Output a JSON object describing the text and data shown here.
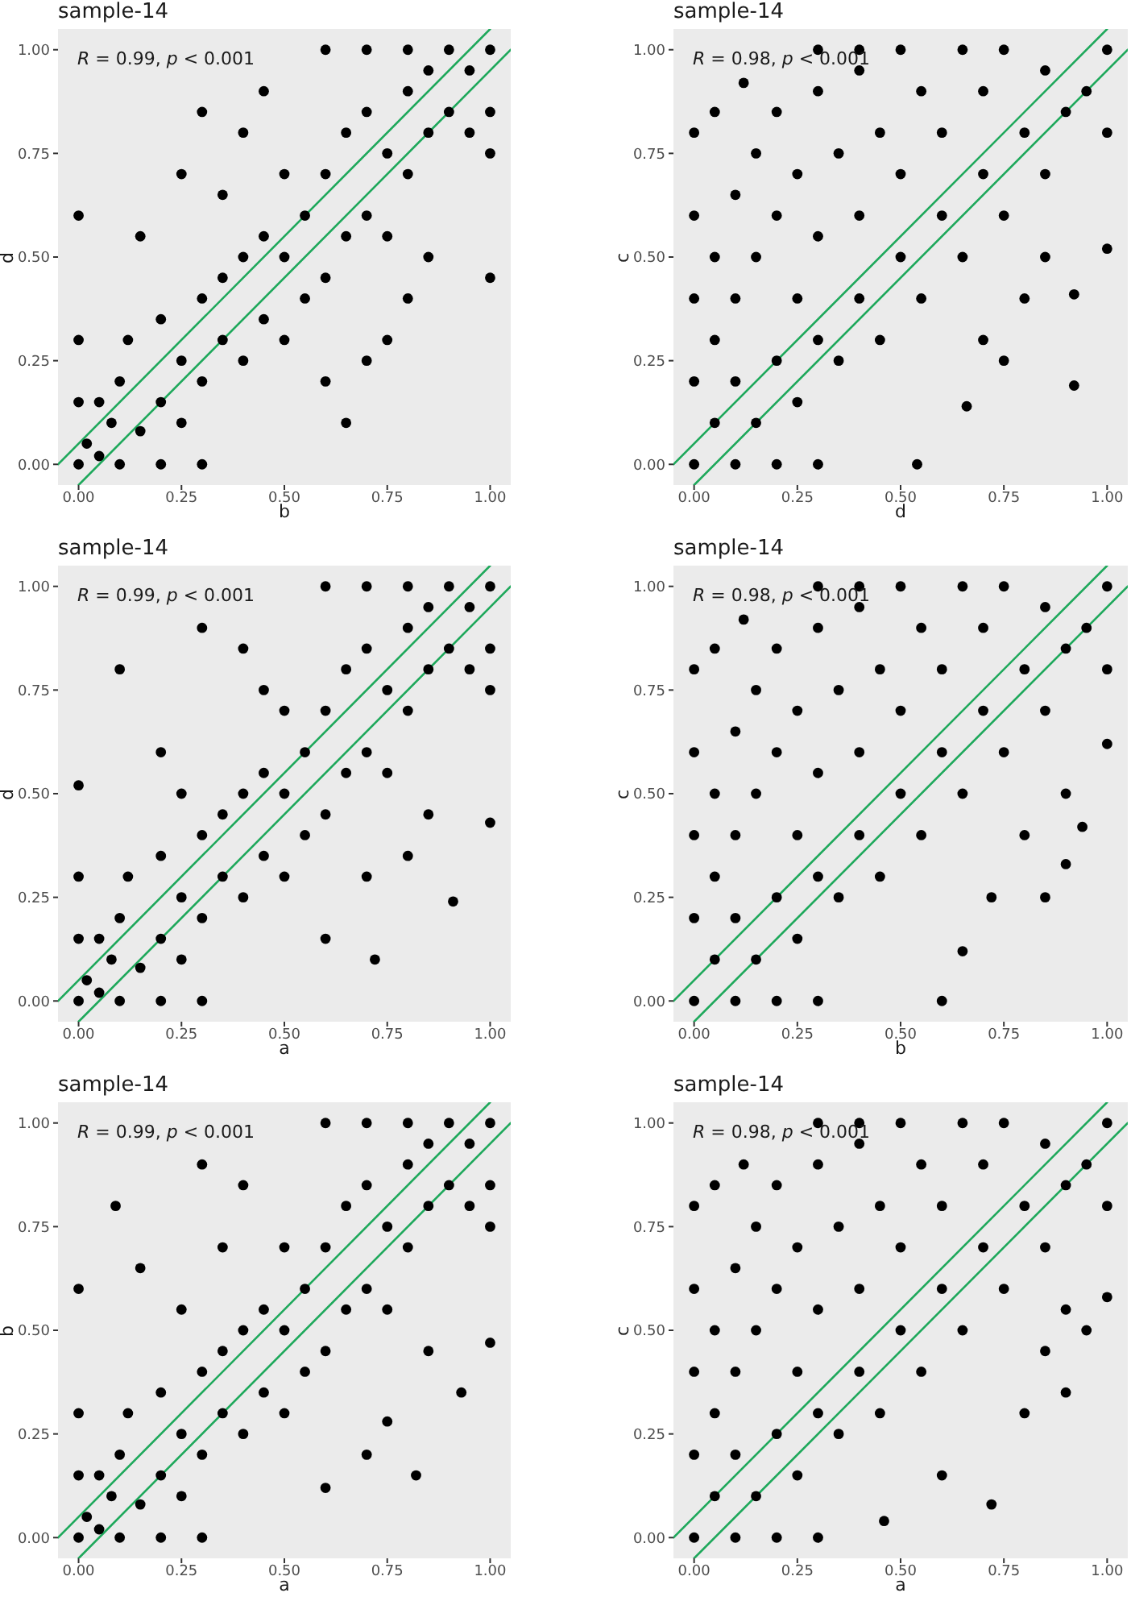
{
  "chart_data": [
    {
      "type": "scatter",
      "title": "sample-14",
      "xlabel": "b",
      "ylabel": "d",
      "annotations": [
        "R = 0.99, p < 0.001"
      ],
      "xlim": [
        -0.05,
        1.05
      ],
      "ylim": [
        -0.05,
        1.05
      ],
      "xticks": [
        {
          "value": 0,
          "label": "0.00"
        },
        {
          "value": 0.25,
          "label": "0.25"
        },
        {
          "value": 0.5,
          "label": "0.50"
        },
        {
          "value": 0.75,
          "label": "0.75"
        },
        {
          "value": 1,
          "label": "1.00"
        }
      ],
      "yticks": [
        {
          "value": 0,
          "label": "0.00"
        },
        {
          "value": 0.25,
          "label": "0.25"
        },
        {
          "value": 0.5,
          "label": "0.50"
        },
        {
          "value": 0.75,
          "label": "0.75"
        },
        {
          "value": 1,
          "label": "1.00"
        }
      ],
      "series": [
        {
          "color": "#000000",
          "marker": "circle",
          "x": [
            0,
            0.02,
            0,
            0,
            0.05,
            0.1,
            0.2,
            0.3,
            0.05,
            0.1,
            0.08,
            0.15,
            0.12,
            0.2,
            0.2,
            0.25,
            0.25,
            0.3,
            0.3,
            0.35,
            0.35,
            0.4,
            0.4,
            0.45,
            0.45,
            0.5,
            0.5,
            0.5,
            0.55,
            0.55,
            0.6,
            0.6,
            0.65,
            0.65,
            0.7,
            0.7,
            0.75,
            0.75,
            0.8,
            0.8,
            0.85,
            0.85,
            0.9,
            0.9,
            0.95,
            0.95,
            1,
            1,
            1,
            0.7,
            0.6,
            0.8,
            0.25,
            0.3,
            0.4,
            0.45,
            0.15,
            0.35,
            0.6,
            0.7,
            0.8,
            0.85,
            0.65,
            0.75,
            0,
            1
          ],
          "values": [
            0,
            0.05,
            0.15,
            0.3,
            0.02,
            0,
            0,
            0,
            0.15,
            0.2,
            0.1,
            0.08,
            0.3,
            0.35,
            0.15,
            0.1,
            0.25,
            0.4,
            0.2,
            0.45,
            0.3,
            0.5,
            0.25,
            0.35,
            0.55,
            0.5,
            0.3,
            0.7,
            0.6,
            0.4,
            0.45,
            0.7,
            0.55,
            0.8,
            0.6,
            0.85,
            0.75,
            0.55,
            0.7,
            0.9,
            0.8,
            0.95,
            0.85,
            1,
            0.95,
            0.8,
            1,
            0.85,
            0.75,
            1,
            1,
            1,
            0.7,
            0.85,
            0.8,
            0.9,
            0.55,
            0.65,
            0.2,
            0.25,
            0.4,
            0.5,
            0.1,
            0.3,
            0.6,
            0.45
          ]
        },
        {
          "type": "line",
          "color": "#1ea85b",
          "line_style": "solid",
          "x": [
            -0.05,
            1
          ],
          "values": [
            0,
            1.05
          ]
        },
        {
          "type": "line",
          "color": "#1ea85b",
          "line_style": "solid",
          "x": [
            0,
            1.05
          ],
          "values": [
            -0.05,
            1
          ]
        }
      ]
    },
    {
      "type": "scatter",
      "title": "sample-14",
      "xlabel": "d",
      "ylabel": "c",
      "annotations": [
        "R = 0.98, p < 0.001"
      ],
      "xlim": [
        -0.05,
        1.05
      ],
      "ylim": [
        -0.05,
        1.05
      ],
      "xticks": [
        {
          "value": 0,
          "label": "0.00"
        },
        {
          "value": 0.25,
          "label": "0.25"
        },
        {
          "value": 0.5,
          "label": "0.50"
        },
        {
          "value": 0.75,
          "label": "0.75"
        },
        {
          "value": 1,
          "label": "1.00"
        }
      ],
      "yticks": [
        {
          "value": 0,
          "label": "0.00"
        },
        {
          "value": 0.25,
          "label": "0.25"
        },
        {
          "value": 0.5,
          "label": "0.50"
        },
        {
          "value": 0.75,
          "label": "0.75"
        },
        {
          "value": 1,
          "label": "1.00"
        }
      ],
      "series": [
        {
          "color": "#000000",
          "marker": "circle",
          "x": [
            0,
            0,
            0,
            0,
            0,
            0.1,
            0.2,
            0.3,
            0.05,
            0.05,
            0.05,
            0.1,
            0.1,
            0.1,
            0.15,
            0.15,
            0.15,
            0.2,
            0.2,
            0.2,
            0.25,
            0.25,
            0.25,
            0.3,
            0.3,
            0.3,
            0.35,
            0.35,
            0.4,
            0.4,
            0.4,
            0.45,
            0.45,
            0.5,
            0.5,
            0.5,
            0.55,
            0.55,
            0.6,
            0.6,
            0.65,
            0.65,
            0.7,
            0.7,
            0.75,
            0.75,
            0.8,
            0.85,
            0.85,
            0.9,
            0.95,
            1,
            1,
            0.3,
            0.4,
            0.05,
            0.12,
            0.54,
            0.66,
            0.7,
            0.75,
            0.8,
            0.85,
            0.92,
            0.92,
            1
          ],
          "values": [
            0,
            0.2,
            0.4,
            0.6,
            0.8,
            0,
            0,
            0,
            0.1,
            0.3,
            0.5,
            0.2,
            0.4,
            0.65,
            0.1,
            0.5,
            0.75,
            0.25,
            0.6,
            0.85,
            0.15,
            0.4,
            0.7,
            0.3,
            0.55,
            0.9,
            0.25,
            0.75,
            0.4,
            0.6,
            0.95,
            0.3,
            0.8,
            0.5,
            0.7,
            1,
            0.4,
            0.9,
            0.6,
            0.8,
            0.5,
            1,
            0.7,
            0.9,
            0.6,
            1,
            0.8,
            0.7,
            0.95,
            0.85,
            0.9,
            1,
            0.8,
            1,
            1,
            0.85,
            0.92,
            0,
            0.14,
            0.3,
            0.25,
            0.4,
            0.5,
            0.19,
            0.41,
            0.52
          ]
        },
        {
          "type": "line",
          "color": "#1ea85b",
          "line_style": "solid",
          "x": [
            -0.05,
            1
          ],
          "values": [
            0,
            1.05
          ]
        },
        {
          "type": "line",
          "color": "#1ea85b",
          "line_style": "solid",
          "x": [
            0,
            1.05
          ],
          "values": [
            -0.05,
            1
          ]
        }
      ]
    },
    {
      "type": "scatter",
      "title": "sample-14",
      "xlabel": "a",
      "ylabel": "d",
      "annotations": [
        "R = 0.99, p < 0.001"
      ],
      "xlim": [
        -0.05,
        1.05
      ],
      "ylim": [
        -0.05,
        1.05
      ],
      "xticks": [
        {
          "value": 0,
          "label": "0.00"
        },
        {
          "value": 0.25,
          "label": "0.25"
        },
        {
          "value": 0.5,
          "label": "0.50"
        },
        {
          "value": 0.75,
          "label": "0.75"
        },
        {
          "value": 1,
          "label": "1.00"
        }
      ],
      "yticks": [
        {
          "value": 0,
          "label": "0.00"
        },
        {
          "value": 0.25,
          "label": "0.25"
        },
        {
          "value": 0.5,
          "label": "0.50"
        },
        {
          "value": 0.75,
          "label": "0.75"
        },
        {
          "value": 1,
          "label": "1.00"
        }
      ],
      "series": [
        {
          "color": "#000000",
          "marker": "circle",
          "x": [
            0,
            0.02,
            0,
            0,
            0.05,
            0.1,
            0.2,
            0.3,
            0.05,
            0.1,
            0.08,
            0.15,
            0.12,
            0.2,
            0.2,
            0.25,
            0.25,
            0.3,
            0.3,
            0.35,
            0.35,
            0.4,
            0.4,
            0.45,
            0.45,
            0.5,
            0.5,
            0.5,
            0.55,
            0.55,
            0.6,
            0.6,
            0.65,
            0.65,
            0.7,
            0.7,
            0.75,
            0.75,
            0.8,
            0.8,
            0.85,
            0.85,
            0.9,
            0.9,
            0.95,
            0.95,
            1,
            1,
            1,
            0.7,
            0.6,
            0.8,
            0.1,
            0.2,
            0.3,
            0.4,
            0.45,
            0.25,
            0.91,
            0.72,
            0.8,
            0.85,
            0.6,
            0.7,
            0,
            1
          ],
          "values": [
            0,
            0.05,
            0.15,
            0.3,
            0.02,
            0,
            0,
            0,
            0.15,
            0.2,
            0.1,
            0.08,
            0.3,
            0.35,
            0.15,
            0.1,
            0.25,
            0.4,
            0.2,
            0.45,
            0.3,
            0.5,
            0.25,
            0.35,
            0.55,
            0.5,
            0.3,
            0.7,
            0.6,
            0.4,
            0.45,
            0.7,
            0.55,
            0.8,
            0.6,
            0.85,
            0.75,
            0.55,
            0.7,
            0.9,
            0.8,
            0.95,
            0.85,
            1,
            0.95,
            0.8,
            1,
            0.85,
            0.75,
            1,
            1,
            1,
            0.8,
            0.6,
            0.9,
            0.85,
            0.75,
            0.5,
            0.24,
            0.1,
            0.35,
            0.45,
            0.15,
            0.3,
            0.52,
            0.43
          ]
        },
        {
          "type": "line",
          "color": "#1ea85b",
          "line_style": "solid",
          "x": [
            -0.05,
            1
          ],
          "values": [
            0,
            1.05
          ]
        },
        {
          "type": "line",
          "color": "#1ea85b",
          "line_style": "solid",
          "x": [
            0,
            1.05
          ],
          "values": [
            -0.05,
            1
          ]
        }
      ]
    },
    {
      "type": "scatter",
      "title": "sample-14",
      "xlabel": "b",
      "ylabel": "c",
      "annotations": [
        "R = 0.98, p < 0.001"
      ],
      "xlim": [
        -0.05,
        1.05
      ],
      "ylim": [
        -0.05,
        1.05
      ],
      "xticks": [
        {
          "value": 0,
          "label": "0.00"
        },
        {
          "value": 0.25,
          "label": "0.25"
        },
        {
          "value": 0.5,
          "label": "0.50"
        },
        {
          "value": 0.75,
          "label": "0.75"
        },
        {
          "value": 1,
          "label": "1.00"
        }
      ],
      "yticks": [
        {
          "value": 0,
          "label": "0.00"
        },
        {
          "value": 0.25,
          "label": "0.25"
        },
        {
          "value": 0.5,
          "label": "0.50"
        },
        {
          "value": 0.75,
          "label": "0.75"
        },
        {
          "value": 1,
          "label": "1.00"
        }
      ],
      "series": [
        {
          "color": "#000000",
          "marker": "circle",
          "x": [
            0,
            0,
            0,
            0,
            0,
            0.1,
            0.2,
            0.3,
            0.05,
            0.05,
            0.05,
            0.1,
            0.1,
            0.1,
            0.15,
            0.15,
            0.15,
            0.2,
            0.2,
            0.2,
            0.25,
            0.25,
            0.25,
            0.3,
            0.3,
            0.3,
            0.35,
            0.35,
            0.4,
            0.4,
            0.4,
            0.45,
            0.45,
            0.5,
            0.5,
            0.5,
            0.55,
            0.55,
            0.6,
            0.6,
            0.65,
            0.65,
            0.7,
            0.7,
            0.75,
            0.75,
            0.8,
            0.85,
            0.85,
            0.9,
            0.95,
            1,
            1,
            0.3,
            0.4,
            0.05,
            0.12,
            0.6,
            0.65,
            0.72,
            0.85,
            0.8,
            0.9,
            0.9,
            0.94,
            1
          ],
          "values": [
            0,
            0.2,
            0.4,
            0.6,
            0.8,
            0,
            0,
            0,
            0.1,
            0.3,
            0.5,
            0.2,
            0.4,
            0.65,
            0.1,
            0.5,
            0.75,
            0.25,
            0.6,
            0.85,
            0.15,
            0.4,
            0.7,
            0.3,
            0.55,
            0.9,
            0.25,
            0.75,
            0.4,
            0.6,
            0.95,
            0.3,
            0.8,
            0.5,
            0.7,
            1,
            0.4,
            0.9,
            0.6,
            0.8,
            0.5,
            1,
            0.7,
            0.9,
            0.6,
            1,
            0.8,
            0.7,
            0.95,
            0.85,
            0.9,
            1,
            0.8,
            1,
            1,
            0.85,
            0.92,
            0,
            0.12,
            0.25,
            0.25,
            0.4,
            0.33,
            0.5,
            0.42,
            0.62
          ]
        },
        {
          "type": "line",
          "color": "#1ea85b",
          "line_style": "solid",
          "x": [
            -0.05,
            1
          ],
          "values": [
            0,
            1.05
          ]
        },
        {
          "type": "line",
          "color": "#1ea85b",
          "line_style": "solid",
          "x": [
            0,
            1.05
          ],
          "values": [
            -0.05,
            1
          ]
        }
      ]
    },
    {
      "type": "scatter",
      "title": "sample-14",
      "xlabel": "a",
      "ylabel": "b",
      "annotations": [
        "R = 0.99, p < 0.001"
      ],
      "xlim": [
        -0.05,
        1.05
      ],
      "ylim": [
        -0.05,
        1.05
      ],
      "xticks": [
        {
          "value": 0,
          "label": "0.00"
        },
        {
          "value": 0.25,
          "label": "0.25"
        },
        {
          "value": 0.5,
          "label": "0.50"
        },
        {
          "value": 0.75,
          "label": "0.75"
        },
        {
          "value": 1,
          "label": "1.00"
        }
      ],
      "yticks": [
        {
          "value": 0,
          "label": "0.00"
        },
        {
          "value": 0.25,
          "label": "0.25"
        },
        {
          "value": 0.5,
          "label": "0.50"
        },
        {
          "value": 0.75,
          "label": "0.75"
        },
        {
          "value": 1,
          "label": "1.00"
        }
      ],
      "series": [
        {
          "color": "#000000",
          "marker": "circle",
          "x": [
            0,
            0.02,
            0,
            0,
            0.05,
            0.1,
            0.2,
            0.3,
            0.05,
            0.1,
            0.08,
            0.15,
            0.12,
            0.2,
            0.2,
            0.25,
            0.25,
            0.3,
            0.3,
            0.35,
            0.35,
            0.4,
            0.4,
            0.45,
            0.45,
            0.5,
            0.5,
            0.5,
            0.55,
            0.55,
            0.6,
            0.6,
            0.65,
            0.65,
            0.7,
            0.7,
            0.75,
            0.75,
            0.8,
            0.8,
            0.85,
            0.85,
            0.9,
            0.9,
            0.95,
            0.95,
            1,
            1,
            1,
            0.7,
            0.6,
            0.8,
            0.09,
            0.15,
            0.3,
            0.4,
            0.35,
            0.25,
            0.82,
            0.7,
            0.93,
            0.85,
            0.6,
            0.75,
            0,
            1
          ],
          "values": [
            0,
            0.05,
            0.15,
            0.3,
            0.02,
            0,
            0,
            0,
            0.15,
            0.2,
            0.1,
            0.08,
            0.3,
            0.35,
            0.15,
            0.1,
            0.25,
            0.4,
            0.2,
            0.45,
            0.3,
            0.5,
            0.25,
            0.35,
            0.55,
            0.5,
            0.3,
            0.7,
            0.6,
            0.4,
            0.45,
            0.7,
            0.55,
            0.8,
            0.6,
            0.85,
            0.75,
            0.55,
            0.7,
            0.9,
            0.8,
            0.95,
            0.85,
            1,
            0.95,
            0.8,
            1,
            0.85,
            0.75,
            1,
            1,
            1,
            0.8,
            0.65,
            0.9,
            0.85,
            0.7,
            0.55,
            0.15,
            0.2,
            0.35,
            0.45,
            0.12,
            0.28,
            0.6,
            0.47
          ]
        },
        {
          "type": "line",
          "color": "#1ea85b",
          "line_style": "solid",
          "x": [
            -0.05,
            1
          ],
          "values": [
            0,
            1.05
          ]
        },
        {
          "type": "line",
          "color": "#1ea85b",
          "line_style": "solid",
          "x": [
            0,
            1.05
          ],
          "values": [
            -0.05,
            1
          ]
        }
      ]
    },
    {
      "type": "scatter",
      "title": "sample-14",
      "xlabel": "a",
      "ylabel": "c",
      "annotations": [
        "R = 0.98, p < 0.001"
      ],
      "xlim": [
        -0.05,
        1.05
      ],
      "ylim": [
        -0.05,
        1.05
      ],
      "xticks": [
        {
          "value": 0,
          "label": "0.00"
        },
        {
          "value": 0.25,
          "label": "0.25"
        },
        {
          "value": 0.5,
          "label": "0.50"
        },
        {
          "value": 0.75,
          "label": "0.75"
        },
        {
          "value": 1,
          "label": "1.00"
        }
      ],
      "yticks": [
        {
          "value": 0,
          "label": "0.00"
        },
        {
          "value": 0.25,
          "label": "0.25"
        },
        {
          "value": 0.5,
          "label": "0.50"
        },
        {
          "value": 0.75,
          "label": "0.75"
        },
        {
          "value": 1,
          "label": "1.00"
        }
      ],
      "series": [
        {
          "color": "#000000",
          "marker": "circle",
          "x": [
            0,
            0,
            0,
            0,
            0,
            0.1,
            0.2,
            0.3,
            0.05,
            0.05,
            0.05,
            0.1,
            0.1,
            0.1,
            0.15,
            0.15,
            0.15,
            0.2,
            0.2,
            0.2,
            0.25,
            0.25,
            0.25,
            0.3,
            0.3,
            0.3,
            0.35,
            0.35,
            0.4,
            0.4,
            0.4,
            0.45,
            0.45,
            0.5,
            0.5,
            0.5,
            0.55,
            0.55,
            0.6,
            0.6,
            0.65,
            0.65,
            0.7,
            0.7,
            0.75,
            0.75,
            0.8,
            0.85,
            0.85,
            0.9,
            0.95,
            1,
            1,
            0.3,
            0.4,
            0.05,
            0.12,
            0.46,
            0.6,
            0.72,
            0.8,
            0.85,
            0.9,
            0.9,
            0.95,
            1
          ],
          "values": [
            0,
            0.2,
            0.4,
            0.6,
            0.8,
            0,
            0,
            0,
            0.1,
            0.3,
            0.5,
            0.2,
            0.4,
            0.65,
            0.1,
            0.5,
            0.75,
            0.25,
            0.6,
            0.85,
            0.15,
            0.4,
            0.7,
            0.3,
            0.55,
            0.9,
            0.25,
            0.75,
            0.4,
            0.6,
            0.95,
            0.3,
            0.8,
            0.5,
            0.7,
            1,
            0.4,
            0.9,
            0.6,
            0.8,
            0.5,
            1,
            0.7,
            0.9,
            0.6,
            1,
            0.8,
            0.7,
            0.95,
            0.85,
            0.9,
            1,
            0.8,
            1,
            1,
            0.85,
            0.9,
            0.04,
            0.15,
            0.08,
            0.3,
            0.45,
            0.35,
            0.55,
            0.5,
            0.58
          ]
        },
        {
          "type": "line",
          "color": "#1ea85b",
          "line_style": "solid",
          "x": [
            -0.05,
            1
          ],
          "values": [
            0,
            1.05
          ]
        },
        {
          "type": "line",
          "color": "#1ea85b",
          "line_style": "solid",
          "x": [
            0,
            1.05
          ],
          "values": [
            -0.05,
            1
          ]
        }
      ]
    }
  ]
}
